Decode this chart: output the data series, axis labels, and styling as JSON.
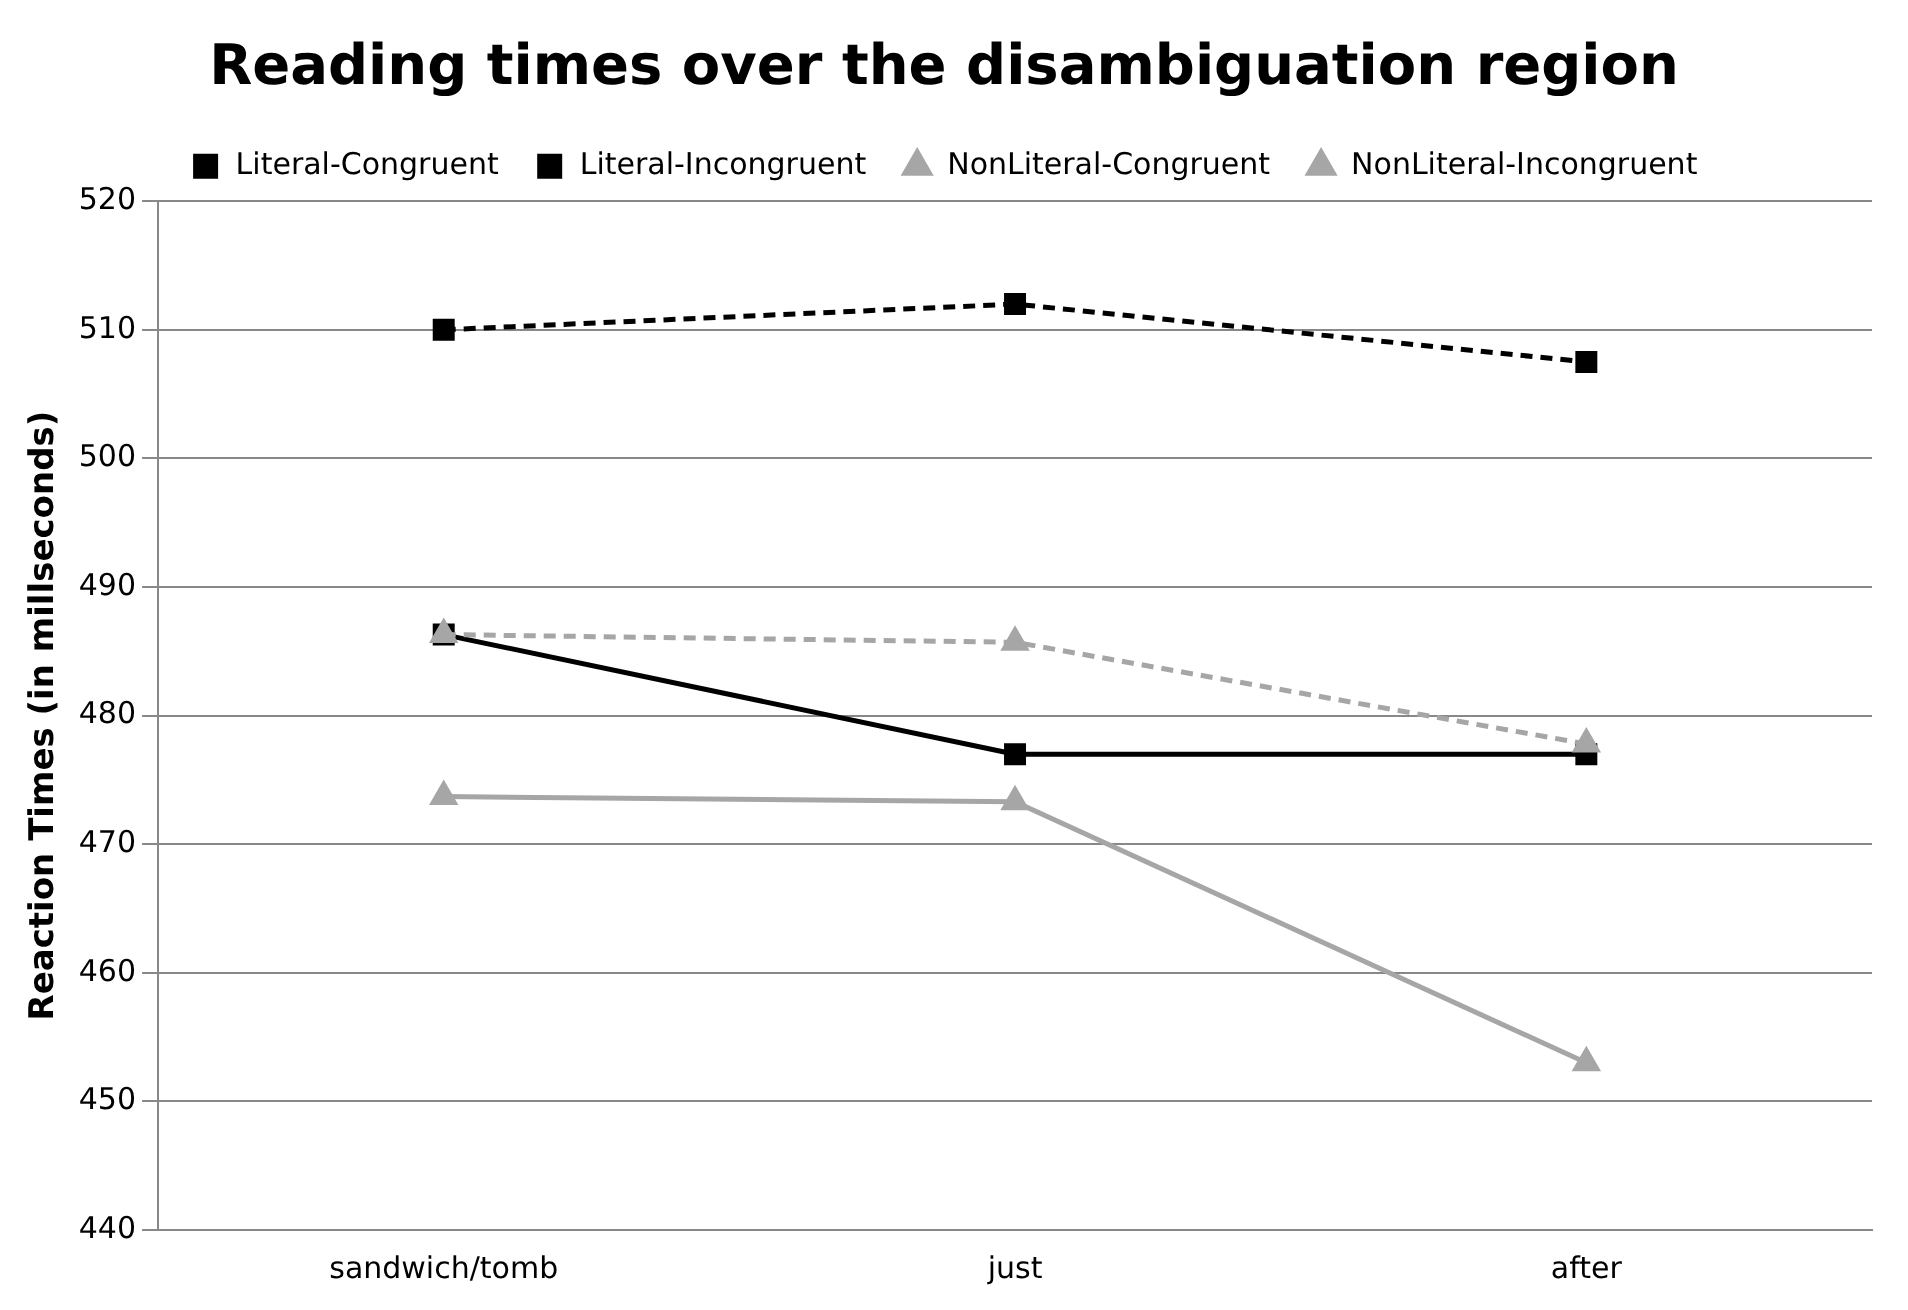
{
  "chart_data": {
    "type": "line",
    "title": "Reading times over the disambiguation region",
    "ylabel": "Reaction Times (in millseconds)",
    "categories": [
      "sandwich/tomb",
      "just",
      "after"
    ],
    "series": [
      {
        "name": "Literal-Congruent",
        "color": "#000000",
        "values": [
          486.3,
          477,
          477
        ],
        "marker": "square",
        "line_style": "solid"
      },
      {
        "name": "Literal-Incongruent",
        "color": "#000000",
        "values": [
          510,
          512,
          507.5
        ],
        "marker": "square",
        "line_style": "dashed"
      },
      {
        "name": "NonLiteral-Congruent",
        "color": "#a6a6a6",
        "values": [
          473.7,
          473.3,
          453
        ],
        "marker": "triangle",
        "line_style": "solid"
      },
      {
        "name": "NonLiteral-Incongruent",
        "color": "#a6a6a6",
        "values": [
          486.3,
          485.7,
          477.8
        ],
        "marker": "triangle",
        "line_style": "dashed"
      }
    ],
    "ylim": [
      440,
      520
    ],
    "yticks": [
      440,
      450,
      460,
      470,
      480,
      490,
      500,
      510,
      520
    ],
    "grid": "y",
    "legend": "top"
  }
}
